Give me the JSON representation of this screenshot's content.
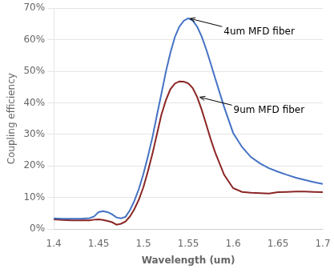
{
  "chart_data": {
    "type": "line",
    "xlabel": "Wavelength (um)",
    "ylabel": "Coupling efficiency",
    "xlim": [
      1.4,
      1.7
    ],
    "ylim": [
      0.0,
      0.7
    ],
    "xticks": [
      1.4,
      1.45,
      1.5,
      1.55,
      1.6,
      1.65,
      1.7
    ],
    "yticks": [
      {
        "value": 0.0,
        "label": "0%"
      },
      {
        "value": 0.1,
        "label": "10%"
      },
      {
        "value": 0.2,
        "label": "20%"
      },
      {
        "value": 0.3,
        "label": "30%"
      },
      {
        "value": 0.4,
        "label": "40%"
      },
      {
        "value": 0.5,
        "label": "50%"
      },
      {
        "value": 0.6,
        "label": "60%"
      },
      {
        "value": 0.7,
        "label": "70%"
      }
    ],
    "grid": "y",
    "x": [
      1.4,
      1.41,
      1.42,
      1.43,
      1.44,
      1.445,
      1.45,
      1.455,
      1.46,
      1.465,
      1.47,
      1.475,
      1.48,
      1.485,
      1.49,
      1.495,
      1.5,
      1.505,
      1.51,
      1.515,
      1.52,
      1.525,
      1.53,
      1.535,
      1.54,
      1.545,
      1.55,
      1.555,
      1.56,
      1.565,
      1.57,
      1.575,
      1.58,
      1.59,
      1.6,
      1.61,
      1.62,
      1.63,
      1.64,
      1.65,
      1.66,
      1.67,
      1.68,
      1.69,
      1.7
    ],
    "series": [
      {
        "color": "#4472C4",
        "values": [
          0.034,
          0.033,
          0.033,
          0.033,
          0.035,
          0.04,
          0.054,
          0.057,
          0.054,
          0.047,
          0.037,
          0.034,
          0.039,
          0.06,
          0.09,
          0.128,
          0.175,
          0.23,
          0.29,
          0.36,
          0.428,
          0.498,
          0.558,
          0.608,
          0.641,
          0.66,
          0.668,
          0.661,
          0.641,
          0.61,
          0.57,
          0.525,
          0.478,
          0.387,
          0.305,
          0.26,
          0.228,
          0.208,
          0.193,
          0.182,
          0.172,
          0.163,
          0.156,
          0.149,
          0.143
        ]
      },
      {
        "color": "#8B2525",
        "values": [
          0.031,
          0.029,
          0.028,
          0.028,
          0.028,
          0.03,
          0.031,
          0.029,
          0.026,
          0.022,
          0.014,
          0.017,
          0.024,
          0.04,
          0.064,
          0.094,
          0.133,
          0.183,
          0.238,
          0.3,
          0.362,
          0.408,
          0.443,
          0.461,
          0.468,
          0.467,
          0.462,
          0.447,
          0.418,
          0.378,
          0.332,
          0.285,
          0.243,
          0.172,
          0.13,
          0.118,
          0.115,
          0.114,
          0.113,
          0.117,
          0.118,
          0.119,
          0.119,
          0.118,
          0.117
        ]
      }
    ],
    "annotations": [
      {
        "text": "4um MFD fiber",
        "x": 1.552,
        "y": 0.667
      },
      {
        "text": "9um MFD fiber",
        "x": 1.563,
        "y": 0.418
      }
    ]
  }
}
